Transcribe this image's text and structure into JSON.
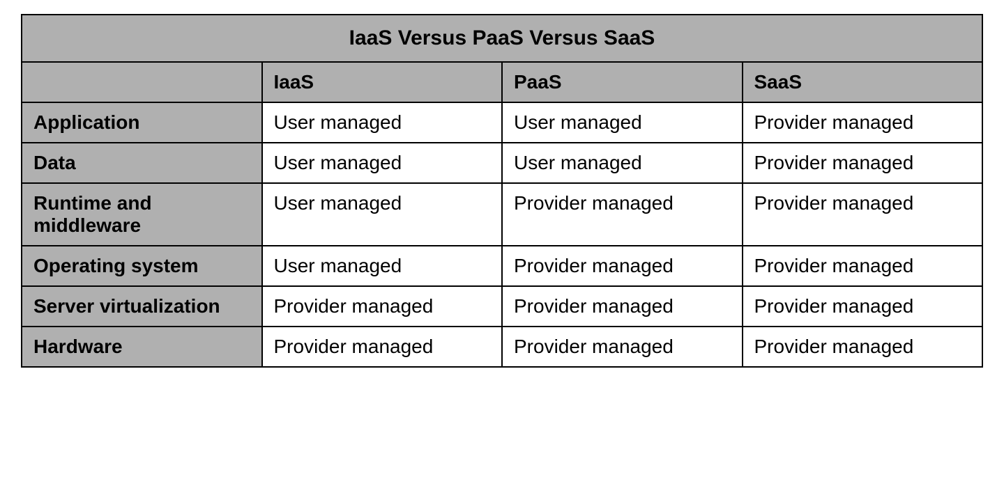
{
  "table": {
    "type": "table",
    "title": "IaaS Versus PaaS Versus SaaS",
    "title_fontsize": 30,
    "title_fontweight": "bold",
    "column_headers": [
      "IaaS",
      "PaaS",
      "SaaS"
    ],
    "row_labels": [
      "Application",
      "Data",
      "Runtime and middleware",
      "Operating system",
      "Server virtualization",
      "Hardware"
    ],
    "rows": [
      [
        "User managed",
        "User managed",
        "Provider managed"
      ],
      [
        "User managed",
        "User managed",
        "Provider managed"
      ],
      [
        "User managed",
        "Provider managed",
        "Provider managed"
      ],
      [
        "User managed",
        "Provider managed",
        "Provider managed"
      ],
      [
        "Provider managed",
        "Provider managed",
        "Provider managed"
      ],
      [
        "Provider managed",
        "Provider managed",
        "Provider managed"
      ]
    ],
    "header_background_color": "#b0b0b0",
    "cell_background_color": "#ffffff",
    "border_color": "#000000",
    "border_width": 2,
    "cell_fontsize": 28,
    "header_fontweight": "bold",
    "cell_fontweight": "normal",
    "text_color": "#000000",
    "column_widths_pct": [
      25,
      25,
      25,
      25
    ]
  }
}
